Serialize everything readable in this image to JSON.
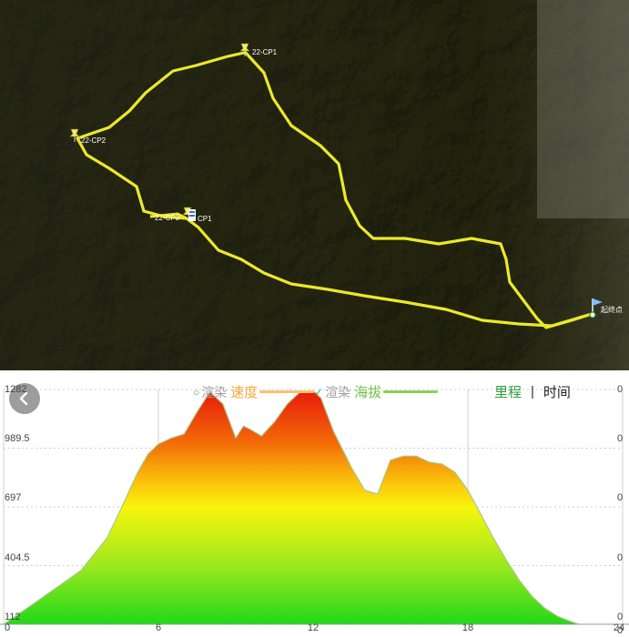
{
  "map": {
    "waypoints": [
      {
        "name": "22-CP1",
        "icon": "pushpin-icon"
      },
      {
        "name": "22-CP2",
        "icon": "pushpin-icon"
      },
      {
        "name": "22-CP3",
        "icon": "pushpin-icon"
      },
      {
        "name": "CP1",
        "icon": "flag-icon"
      },
      {
        "name": "起终点",
        "icon": "flag-icon"
      }
    ],
    "track_color": "#ece82a"
  },
  "legend": {
    "speed": {
      "render": "渲染",
      "name": "速度",
      "color": "#f2a93b",
      "checked": false
    },
    "altitude": {
      "render": "渲染",
      "name": "海拔",
      "color": "#8dcf5a",
      "checked": true
    }
  },
  "toggle": {
    "distance": "里程",
    "divider": "|",
    "time": "时间",
    "active": "distance"
  },
  "back_button": {
    "icon": "chevron-left-icon"
  },
  "chart_data": {
    "type": "area",
    "x_ticks": [
      "0",
      "6",
      "12",
      "18",
      "24"
    ],
    "y_ticks": [
      "112",
      "404.5",
      "697",
      "989.5",
      "1282"
    ],
    "y_right_ticks": [
      "0",
      "0",
      "0",
      "0",
      "0",
      "0"
    ],
    "ylim": [
      112,
      1282
    ],
    "xlim": [
      0,
      24
    ],
    "series": [
      {
        "name": "海拔",
        "x": [
          0,
          1,
          2,
          3,
          4,
          4.6,
          5.2,
          5.6,
          6,
          6.5,
          7,
          7.5,
          8,
          8.5,
          9,
          9.3,
          9.6,
          10,
          10.5,
          11,
          11.5,
          12,
          12.3,
          12.8,
          13.5,
          14,
          14.5,
          15,
          15.5,
          16,
          16.5,
          17,
          17.5,
          18,
          18.5,
          19,
          19.5,
          20,
          20.5,
          21,
          21.5,
          22,
          22.3
        ],
        "values": [
          112,
          200,
          290,
          380,
          540,
          700,
          870,
          960,
          1010,
          1040,
          1060,
          1170,
          1270,
          1210,
          1040,
          1100,
          1080,
          1050,
          1120,
          1210,
          1270,
          1275,
          1240,
          1070,
          890,
          780,
          760,
          930,
          950,
          950,
          920,
          910,
          870,
          780,
          660,
          540,
          430,
          330,
          250,
          190,
          150,
          125,
          112
        ]
      }
    ]
  }
}
